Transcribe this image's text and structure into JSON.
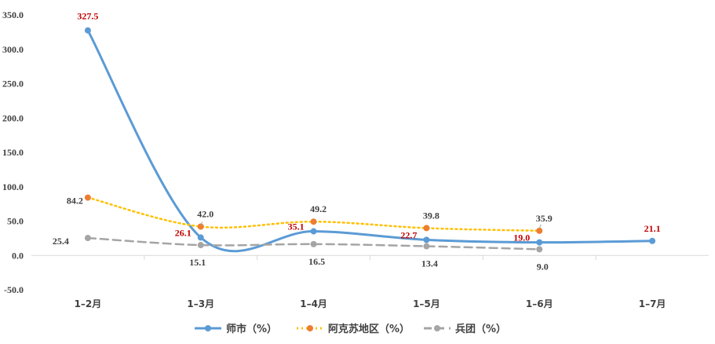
{
  "chart_data": {
    "type": "line",
    "categories": [
      "1–2月",
      "1–3月",
      "1–4月",
      "1–5月",
      "1–6月",
      "1–7月"
    ],
    "ylim": [
      -50,
      350
    ],
    "yticks": [
      "-50.0",
      "0.0",
      "50.0",
      "100.0",
      "150.0",
      "200.0",
      "250.0",
      "300.0",
      "350.0"
    ],
    "grid": false,
    "legend_position": "bottom",
    "series": [
      {
        "name": "师市（%）",
        "values": [
          327.5,
          26.1,
          35.1,
          22.7,
          19.0,
          21.1
        ],
        "labels": [
          "327.5",
          "26.1",
          "35.1",
          "22.7",
          "19.0",
          "21.1"
        ],
        "color": "#5b9bd5",
        "label_color": "#c00000",
        "style": "solid"
      },
      {
        "name": "阿克苏地区（%）",
        "values": [
          84.2,
          42.0,
          49.2,
          39.8,
          35.9,
          null
        ],
        "labels": [
          "84.2",
          "42.0",
          "49.2",
          "39.8",
          "35.9",
          null
        ],
        "color": "#ffc000",
        "marker_color": "#ed7d31",
        "label_color": "#404040",
        "style": "dotted"
      },
      {
        "name": "兵团（%）",
        "values": [
          25.4,
          15.1,
          16.5,
          13.4,
          9.0,
          null
        ],
        "labels": [
          "25.4",
          "15.1",
          "16.5",
          "13.4",
          "9.0",
          null
        ],
        "color": "#a5a5a5",
        "label_color": "#404040",
        "style": "dashed"
      }
    ]
  }
}
